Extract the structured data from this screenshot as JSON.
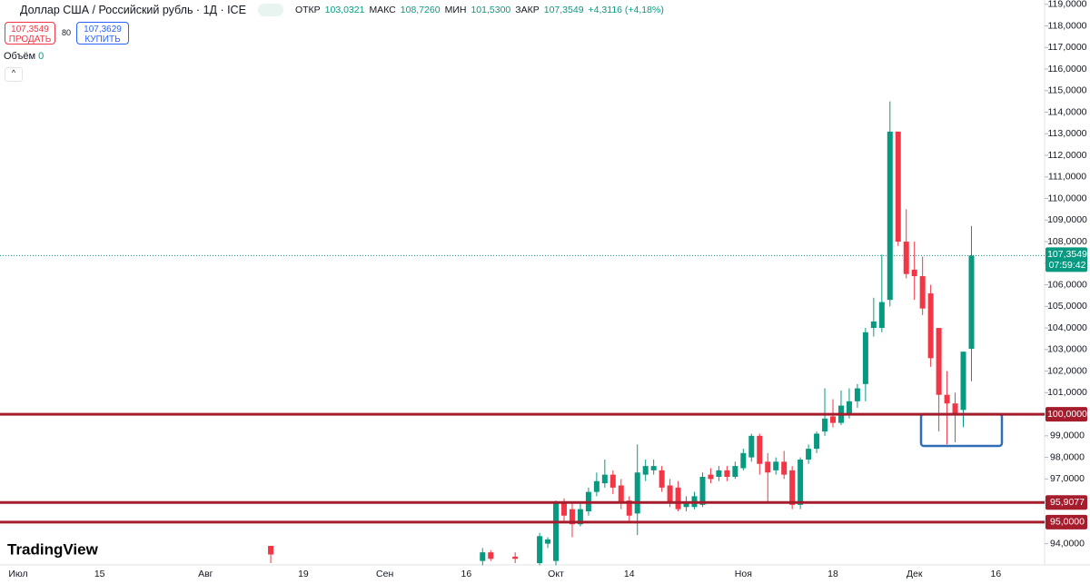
{
  "header": {
    "symbol": "Доллар США / Российский рубль · 1Д · ICE",
    "open_label": "ОТКР",
    "open": "103,0321",
    "high_label": "МАКС",
    "high": "108,7260",
    "low_label": "МИН",
    "low": "101,5300",
    "close_label": "ЗАКР",
    "close": "107,3549",
    "change": "+4,3116 (+4,18%)"
  },
  "trade": {
    "sell_price": "107,3549",
    "sell": "ПРОДАТЬ",
    "spread": "80",
    "buy_price": "107,3629",
    "buy": "КУПИТЬ"
  },
  "volume": {
    "label": "Объём",
    "value": "0"
  },
  "logo": "TradingView",
  "chart_data": {
    "type": "candlestick",
    "up_color": "#089981",
    "down_color": "#f23645",
    "categories": [
      "Июл",
      null,
      null,
      null,
      null,
      null,
      null,
      null,
      null,
      null,
      "15",
      null,
      null,
      null,
      null,
      null,
      null,
      null,
      null,
      null,
      null,
      null,
      null,
      "Авг",
      null,
      null,
      null,
      null,
      null,
      null,
      null,
      null,
      null,
      null,
      null,
      "19",
      null,
      null,
      null,
      null,
      null,
      null,
      null,
      null,
      null,
      "Сен",
      null,
      null,
      null,
      null,
      null,
      null,
      null,
      null,
      null,
      "16",
      null,
      null,
      null,
      null,
      null,
      null,
      null,
      null,
      null,
      null,
      "Окт",
      null,
      null,
      null,
      null,
      null,
      null,
      null,
      null,
      "14",
      null,
      null,
      null,
      null,
      null,
      null,
      null,
      null,
      null,
      null,
      null,
      null,
      null,
      "Ноя",
      null,
      null,
      null,
      null,
      null,
      null,
      null,
      null,
      null,
      null,
      "18",
      null,
      null,
      null,
      null,
      null,
      null,
      null,
      null,
      null,
      "Дек",
      null,
      null,
      null,
      null,
      null,
      null,
      null,
      null,
      null,
      "16",
      null,
      null,
      null,
      null
    ],
    "open": [
      null,
      null,
      null,
      null,
      null,
      null,
      null,
      null,
      null,
      null,
      null,
      null,
      null,
      null,
      null,
      null,
      null,
      null,
      null,
      null,
      null,
      null,
      null,
      null,
      null,
      null,
      null,
      null,
      null,
      null,
      null,
      93.9,
      null,
      null,
      null,
      null,
      null,
      null,
      null,
      null,
      null,
      null,
      null,
      null,
      null,
      null,
      null,
      null,
      null,
      null,
      null,
      null,
      null,
      null,
      null,
      null,
      null,
      93.2,
      93.6,
      null,
      null,
      93.4,
      null,
      null,
      93.1,
      94.0,
      93.2,
      95.9,
      95.6,
      94.9,
      95.5,
      96.4,
      96.8,
      97.2,
      96.7,
      96.0,
      95.4,
      97.2,
      97.4,
      97.4,
      96.7,
      96.6,
      95.7,
      95.7,
      95.8,
      97.2,
      97.1,
      97.4,
      97.1,
      97.5,
      98.0,
      99.0,
      97.8,
      97.4,
      97.8,
      97.4,
      95.8,
      97.9,
      98.4,
      99.2,
      99.9,
      99.6,
      100.0,
      100.6,
      101.4,
      104.0,
      104.0,
      105.3,
      113.1,
      108.0,
      106.7,
      106.4,
      105.6,
      104.0,
      100.9,
      100.5,
      100.2,
      103.0321,
      null,
      null,
      null,
      null,
      null,
      null,
      null
    ],
    "high": [
      null,
      null,
      null,
      null,
      null,
      null,
      null,
      null,
      null,
      null,
      null,
      null,
      null,
      null,
      null,
      null,
      null,
      null,
      null,
      null,
      null,
      null,
      null,
      null,
      null,
      null,
      null,
      null,
      null,
      null,
      null,
      93.9,
      null,
      null,
      null,
      null,
      null,
      null,
      null,
      null,
      null,
      null,
      null,
      null,
      null,
      null,
      null,
      null,
      null,
      null,
      null,
      null,
      null,
      null,
      null,
      null,
      null,
      93.8,
      93.7,
      null,
      null,
      93.6,
      null,
      null,
      94.5,
      94.3,
      96.0,
      96.1,
      95.9,
      95.9,
      96.6,
      97.3,
      97.9,
      97.4,
      97.0,
      96.2,
      98.6,
      97.9,
      97.9,
      97.6,
      97.0,
      96.9,
      96.2,
      96.4,
      97.3,
      97.5,
      97.6,
      97.6,
      97.8,
      98.4,
      99.1,
      99.1,
      98.2,
      98.0,
      98.3,
      97.6,
      98.0,
      98.6,
      99.2,
      101.2,
      100.7,
      101.1,
      101.2,
      101.4,
      104.0,
      105.4,
      107.4,
      114.5,
      113.1,
      109.5,
      108.0,
      107.3,
      106.0,
      104.0,
      102.0,
      101.0,
      102.9,
      108.726,
      null,
      null,
      null,
      null,
      null,
      null,
      null
    ],
    "low": [
      null,
      null,
      null,
      null,
      null,
      null,
      null,
      null,
      null,
      null,
      null,
      null,
      null,
      null,
      null,
      null,
      null,
      null,
      null,
      null,
      null,
      null,
      null,
      null,
      null,
      null,
      null,
      null,
      null,
      null,
      null,
      93.1,
      null,
      null,
      null,
      null,
      null,
      null,
      null,
      null,
      null,
      null,
      null,
      null,
      null,
      null,
      null,
      null,
      null,
      null,
      null,
      null,
      null,
      null,
      null,
      null,
      null,
      93.0,
      93.2,
      null,
      null,
      93.1,
      null,
      null,
      93.0,
      93.8,
      93.0,
      95.0,
      94.3,
      94.8,
      95.3,
      96.2,
      96.6,
      96.3,
      95.6,
      95.0,
      94.4,
      96.9,
      97.2,
      96.4,
      95.7,
      95.5,
      95.5,
      95.6,
      95.7,
      96.8,
      96.9,
      96.9,
      97.0,
      97.4,
      97.8,
      97.2,
      95.9,
      97.2,
      97.0,
      95.6,
      95.6,
      97.7,
      98.2,
      99.0,
      99.4,
      99.5,
      99.8,
      100.3,
      100.6,
      103.6,
      103.8,
      105.0,
      107.8,
      106.3,
      105.3,
      104.6,
      102.2,
      99.2,
      98.6,
      98.7,
      99.4,
      101.53,
      null,
      null,
      null,
      null,
      null,
      null,
      null
    ],
    "close": [
      null,
      null,
      null,
      null,
      null,
      null,
      null,
      null,
      null,
      null,
      null,
      null,
      null,
      null,
      null,
      null,
      null,
      null,
      null,
      null,
      null,
      null,
      null,
      null,
      null,
      null,
      null,
      null,
      null,
      null,
      null,
      93.5,
      null,
      null,
      null,
      null,
      null,
      null,
      null,
      null,
      null,
      null,
      null,
      null,
      null,
      null,
      null,
      null,
      null,
      null,
      null,
      null,
      null,
      null,
      null,
      null,
      null,
      93.6,
      93.3,
      null,
      null,
      93.3,
      null,
      null,
      94.35,
      94.2,
      95.9,
      95.3,
      94.9,
      95.6,
      96.4,
      96.9,
      97.2,
      96.6,
      95.9,
      95.3,
      97.3,
      97.6,
      97.6,
      96.6,
      95.9,
      95.6,
      95.9,
      96.2,
      97.1,
      97.0,
      97.4,
      97.1,
      97.6,
      98.2,
      99.0,
      97.7,
      97.3,
      97.8,
      97.2,
      95.8,
      97.9,
      98.4,
      99.1,
      99.8,
      99.6,
      100.4,
      100.6,
      101.2,
      103.8,
      104.3,
      105.2,
      113.1,
      108.0,
      106.5,
      106.4,
      104.9,
      102.6,
      100.9,
      100.5,
      100.0,
      102.9,
      107.3549,
      null,
      null,
      null,
      null,
      null,
      null,
      null
    ],
    "ylim": [
      93.1,
      119.2
    ],
    "yticks": [
      {
        "value": 94,
        "label": "94,0000"
      },
      {
        "value": 95,
        "label": "95,0000"
      },
      {
        "value": 96,
        "label": "96,0000"
      },
      {
        "value": 97,
        "label": "97,0000"
      },
      {
        "value": 98,
        "label": "98,0000"
      },
      {
        "value": 99,
        "label": "99,0000"
      },
      {
        "value": 100,
        "label": "100,0000"
      },
      {
        "value": 101,
        "label": "101,0000"
      },
      {
        "value": 102,
        "label": "102,0000"
      },
      {
        "value": 103,
        "label": "103,0000"
      },
      {
        "value": 104,
        "label": "104,0000"
      },
      {
        "value": 105,
        "label": "105,0000"
      },
      {
        "value": 106,
        "label": "106,0000"
      },
      {
        "value": 107,
        "label": "107,0000"
      },
      {
        "value": 108,
        "label": "108,0000"
      },
      {
        "value": 109,
        "label": "109,0000"
      },
      {
        "value": 110,
        "label": "110,0000"
      },
      {
        "value": 111,
        "label": "111,0000"
      },
      {
        "value": 112,
        "label": "112,0000"
      },
      {
        "value": 113,
        "label": "113,0000"
      },
      {
        "value": 114,
        "label": "114,0000"
      },
      {
        "value": 115,
        "label": "115,0000"
      },
      {
        "value": 116,
        "label": "116,0000"
      },
      {
        "value": 117,
        "label": "117,0000"
      },
      {
        "value": 118,
        "label": "118,0000"
      },
      {
        "value": 119,
        "label": "119,0000"
      }
    ],
    "hlines": [
      {
        "value": 100,
        "label": "100,0000"
      },
      {
        "value": 95.9077,
        "label": "95,9077"
      },
      {
        "value": 95,
        "label": "95,0000"
      }
    ],
    "hline_color": "#a51d2d",
    "last_price": {
      "value": 107.3549,
      "label": "107,3549",
      "countdown": "07:59:42"
    }
  }
}
